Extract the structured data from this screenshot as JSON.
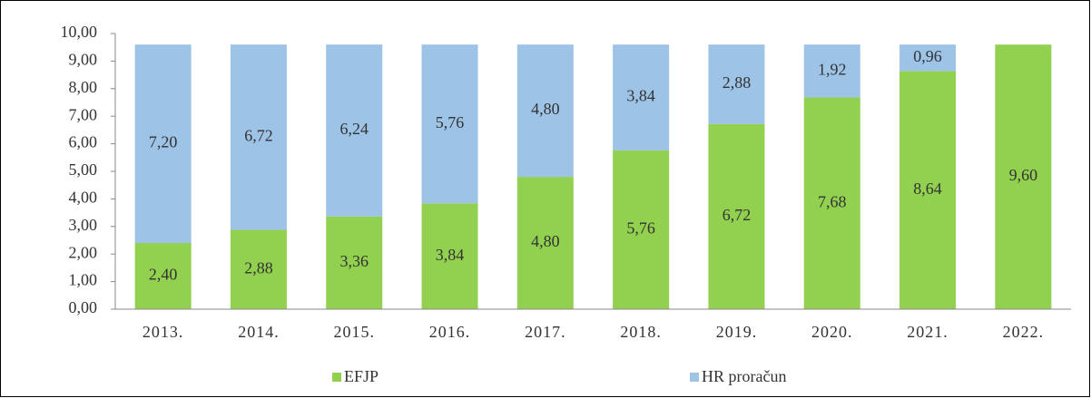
{
  "chart_data": {
    "type": "stacked_bar",
    "categories": [
      "2013.",
      "2014.",
      "2015.",
      "2016.",
      "2017.",
      "2018.",
      "2019.",
      "2020.",
      "2021.",
      "2022."
    ],
    "series": [
      {
        "name": "EFJP",
        "color": "#92d050",
        "values": [
          2.4,
          2.88,
          3.36,
          3.84,
          4.8,
          5.76,
          6.72,
          7.68,
          8.64,
          9.6
        ],
        "value_labels": [
          "2,40",
          "2,88",
          "3,36",
          "3,84",
          "4,80",
          "5,76",
          "6,72",
          "7,68",
          "8,64",
          "9,60"
        ]
      },
      {
        "name": "HR proračun",
        "color": "#9dc3e6",
        "values": [
          7.2,
          6.72,
          6.24,
          5.76,
          4.8,
          3.84,
          2.88,
          1.92,
          0.96,
          null
        ],
        "value_labels": [
          "7,20",
          "6,72",
          "6,24",
          "5,76",
          "4,80",
          "3,84",
          "2,88",
          "1,92",
          "0,96",
          null
        ]
      }
    ],
    "ylim": [
      0,
      10
    ],
    "yticks": [
      {
        "value": 0,
        "label": "0,00"
      },
      {
        "value": 1,
        "label": "1,00"
      },
      {
        "value": 2,
        "label": "2,00"
      },
      {
        "value": 3,
        "label": "3,00"
      },
      {
        "value": 4,
        "label": "4,00"
      },
      {
        "value": 5,
        "label": "5,00"
      },
      {
        "value": 6,
        "label": "6,00"
      },
      {
        "value": 7,
        "label": "7,00"
      },
      {
        "value": 8,
        "label": "8,00"
      },
      {
        "value": 9,
        "label": "9,00"
      },
      {
        "value": 10,
        "label": "10,00"
      }
    ],
    "grid": false,
    "legend": "bottom"
  }
}
